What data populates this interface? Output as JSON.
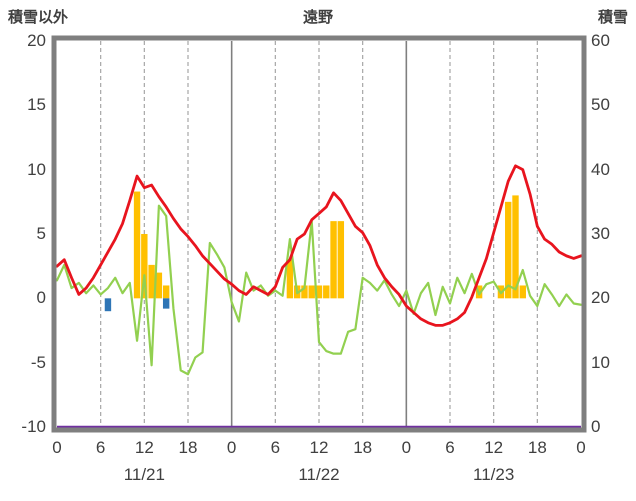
{
  "chart_data": {
    "type": "line",
    "title": "遠野",
    "y_left": {
      "label": "積雪以外",
      "min": -10,
      "max": 20,
      "ticks": [
        -10,
        -5,
        0,
        5,
        10,
        15,
        20
      ]
    },
    "y_right": {
      "label": "積雪",
      "min": 0,
      "max": 60,
      "ticks": [
        0,
        10,
        20,
        30,
        40,
        50,
        60
      ]
    },
    "x_axis": {
      "min": 0,
      "max": 72,
      "tick_hours": [
        0,
        6,
        12,
        18,
        24,
        30,
        36,
        42,
        48,
        54,
        60,
        66,
        72
      ],
      "tick_labels": [
        "0",
        "6",
        "12",
        "18",
        "0",
        "6",
        "12",
        "18",
        "0",
        "6",
        "12",
        "18",
        "0"
      ],
      "solid_hours": [
        24,
        48
      ],
      "day_labels": [
        {
          "hour": 12,
          "label": "11/21"
        },
        {
          "hour": 36,
          "label": "11/22"
        },
        {
          "hour": 60,
          "label": "11/23"
        }
      ]
    },
    "series": [
      {
        "name": "orange-bars",
        "type": "bar",
        "axis": "left",
        "color": "#FFC000",
        "points": [
          {
            "h": 11,
            "v": 8.3
          },
          {
            "h": 12,
            "v": 5.0
          },
          {
            "h": 13,
            "v": 2.6
          },
          {
            "h": 14,
            "v": 2.0
          },
          {
            "h": 15,
            "v": 1.0
          },
          {
            "h": 32,
            "v": 3.0
          },
          {
            "h": 33,
            "v": 1.0
          },
          {
            "h": 34,
            "v": 1.0
          },
          {
            "h": 35,
            "v": 1.0
          },
          {
            "h": 36,
            "v": 1.0
          },
          {
            "h": 37,
            "v": 1.0
          },
          {
            "h": 38,
            "v": 6.0
          },
          {
            "h": 39,
            "v": 6.0
          },
          {
            "h": 58,
            "v": 1.0
          },
          {
            "h": 61,
            "v": 1.0
          },
          {
            "h": 62,
            "v": 7.5
          },
          {
            "h": 63,
            "v": 8.0
          },
          {
            "h": 64,
            "v": 1.0
          }
        ]
      },
      {
        "name": "blue-bars",
        "type": "bar",
        "axis": "left",
        "color": "#2E75B6",
        "points": [
          {
            "h": 7,
            "v": -1.0
          },
          {
            "h": 15,
            "v": -0.8
          }
        ]
      },
      {
        "name": "green-line",
        "type": "line",
        "axis": "left",
        "color": "#92D050",
        "values": [
          1.4,
          2.6,
          0.8,
          1.2,
          0.4,
          1.0,
          0.3,
          0.8,
          1.6,
          0.4,
          1.2,
          -3.3,
          1.8,
          -5.2,
          7.2,
          6.4,
          -0.8,
          -5.6,
          -5.9,
          -4.6,
          -4.2,
          4.3,
          3.4,
          2.4,
          -0.3,
          -1.8,
          2.0,
          0.6,
          1.0,
          0.2,
          0.6,
          0.2,
          4.6,
          0.4,
          0.8,
          6.0,
          -3.4,
          -4.1,
          -4.3,
          -4.3,
          -2.6,
          -2.4,
          1.6,
          1.2,
          0.6,
          1.4,
          0.3,
          -0.6,
          0.6,
          -1.2,
          0.4,
          1.2,
          -1.3,
          0.9,
          -0.4,
          1.6,
          0.4,
          1.9,
          0.3,
          1.1,
          1.3,
          0.4,
          1.0,
          0.7,
          2.2,
          0.2,
          -0.6,
          1.1,
          0.3,
          -0.6,
          0.3,
          -0.4,
          -0.5
        ]
      },
      {
        "name": "red-line",
        "type": "line",
        "axis": "left",
        "color": "#E8141E",
        "values": [
          2.5,
          3.0,
          1.6,
          0.3,
          0.8,
          1.6,
          2.6,
          3.6,
          4.6,
          5.8,
          7.6,
          9.5,
          8.6,
          8.8,
          7.9,
          7.1,
          6.2,
          5.4,
          4.8,
          4.1,
          3.3,
          2.7,
          2.1,
          1.5,
          1.1,
          0.6,
          0.3,
          0.9,
          0.6,
          0.3,
          0.9,
          2.4,
          3.0,
          4.6,
          5.0,
          6.1,
          6.6,
          7.1,
          8.2,
          7.6,
          6.6,
          5.6,
          5.1,
          4.1,
          2.6,
          1.6,
          0.9,
          0.3,
          -0.6,
          -1.1,
          -1.6,
          -1.9,
          -2.1,
          -2.1,
          -1.9,
          -1.6,
          -1.1,
          0.1,
          1.6,
          3.1,
          5.1,
          7.1,
          9.1,
          10.3,
          10.0,
          8.1,
          5.6,
          4.6,
          4.2,
          3.6,
          3.3,
          3.1,
          3.3
        ]
      },
      {
        "name": "purple-line",
        "type": "hline",
        "axis": "right",
        "value": 0,
        "color": "#7030A0"
      }
    ],
    "layout_hints": {
      "grid": "vertical-only",
      "legend": "none",
      "frame_color": "#7F7F7F",
      "dashed_grid_color": "#A6A6A6",
      "text_color": "#404040"
    }
  }
}
